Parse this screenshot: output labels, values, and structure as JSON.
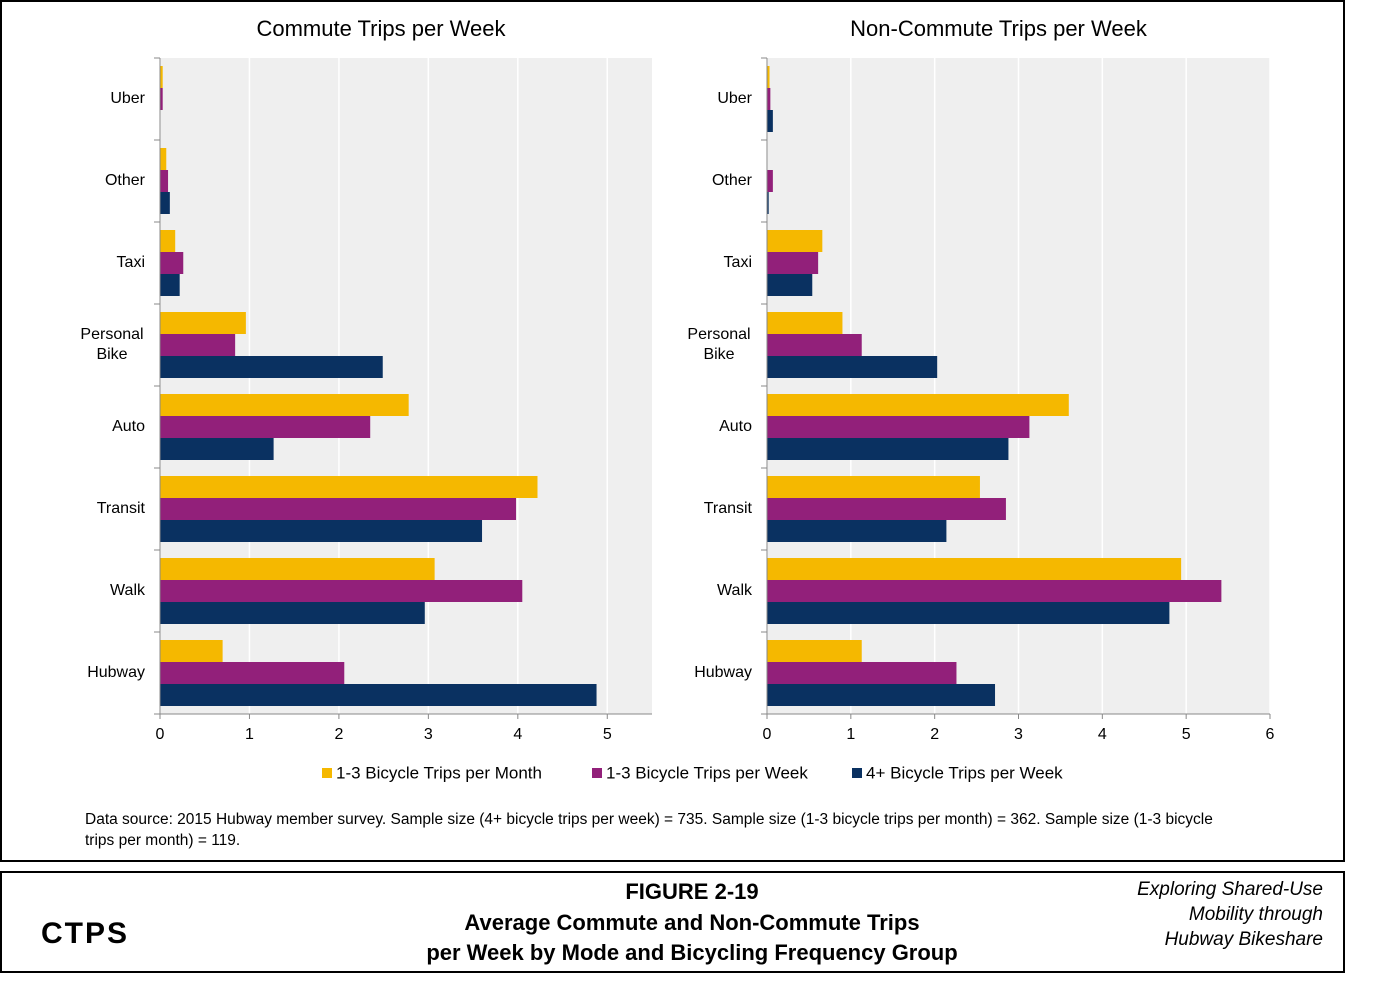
{
  "chart_data": [
    {
      "type": "bar",
      "orientation": "horizontal",
      "title": "Commute Trips per Week",
      "categories": [
        "Uber",
        "Other",
        "Taxi",
        "Personal Bike",
        "Auto",
        "Transit",
        "Walk",
        "Hubway"
      ],
      "series": [
        {
          "name": "1-3 Bicycle Trips per Month",
          "color": "#f5b800",
          "values": [
            0.03,
            0.07,
            0.17,
            0.96,
            2.78,
            4.22,
            3.07,
            0.7
          ]
        },
        {
          "name": "1-3 Bicycle Trips per Week",
          "color": "#92207a",
          "values": [
            0.03,
            0.09,
            0.26,
            0.84,
            2.35,
            3.98,
            4.05,
            2.06
          ]
        },
        {
          "name": "4+ Bicycle Trips per Week",
          "color": "#0a3161",
          "values": [
            0,
            0.11,
            0.22,
            2.49,
            1.27,
            3.6,
            2.96,
            4.88
          ]
        }
      ],
      "xlim": [
        0,
        5.5
      ],
      "xticks": [
        0,
        1,
        2,
        3,
        4,
        5
      ],
      "grid": true
    },
    {
      "type": "bar",
      "orientation": "horizontal",
      "title": "Non-Commute Trips per Week",
      "categories": [
        "Uber",
        "Other",
        "Taxi",
        "Personal Bike",
        "Auto",
        "Transit",
        "Walk",
        "Hubway"
      ],
      "series": [
        {
          "name": "1-3 Bicycle Trips per Month",
          "color": "#f5b800",
          "values": [
            0.03,
            0,
            0.66,
            0.9,
            3.6,
            2.54,
            4.94,
            1.13
          ]
        },
        {
          "name": "1-3 Bicycle Trips per Week",
          "color": "#92207a",
          "values": [
            0.04,
            0.07,
            0.61,
            1.13,
            3.13,
            2.85,
            5.42,
            2.26
          ]
        },
        {
          "name": "4+ Bicycle Trips per Week",
          "color": "#0a3161",
          "values": [
            0.07,
            0.02,
            0.54,
            2.03,
            2.88,
            2.14,
            4.8,
            2.72
          ]
        }
      ],
      "xlim": [
        0,
        6
      ],
      "xticks": [
        0,
        1,
        2,
        3,
        4,
        5,
        6
      ],
      "grid": true
    }
  ],
  "source": "Data source: 2015 Hubway member survey. Sample size (4+ bicycle trips per week) = 735. Sample size (1-3 bicycle trips per month) = 362. Sample size (1-3 bicycle trips per month) = 119.",
  "footer": {
    "logo": "CTPS",
    "figure": "FIGURE 2-19",
    "title": [
      "Average Commute and Non-Commute Trips",
      "per Week by Mode and Bicycling Frequency Group"
    ],
    "report": [
      "Exploring Shared-Use",
      "Mobility through",
      "Hubway Bikeshare"
    ]
  }
}
